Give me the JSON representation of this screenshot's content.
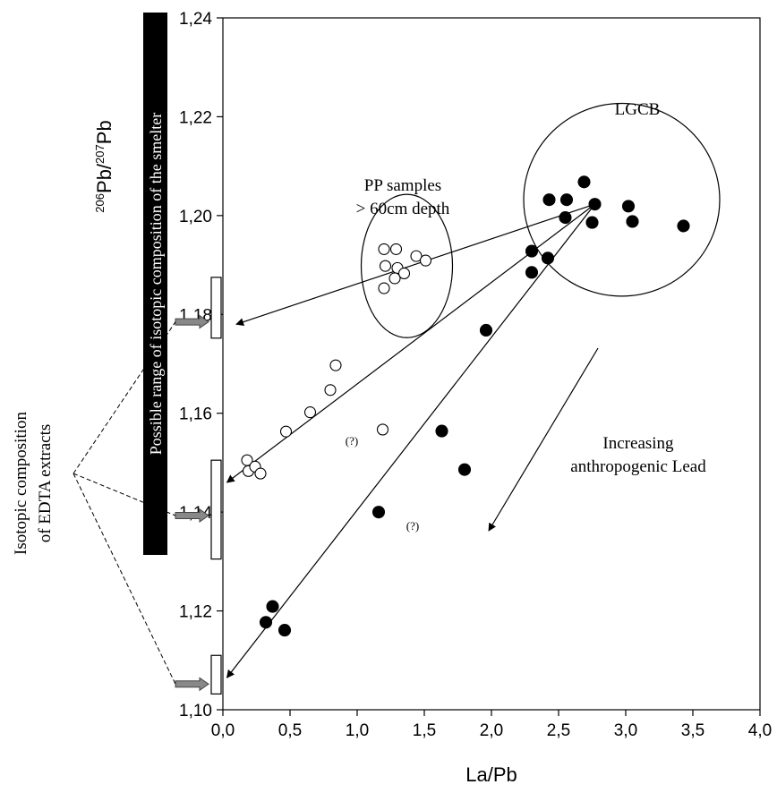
{
  "chart_data": {
    "type": "scatter",
    "xlabel": "La/Pb",
    "ylabel_parts": {
      "iso1_mass": "206",
      "iso1_el": "Pb",
      "slash": "/",
      "iso2_mass": "207",
      "iso2_el": "Pb"
    },
    "xlim": [
      0,
      4
    ],
    "ylim": [
      1.1,
      1.24
    ],
    "xticks": [
      "0,0",
      "0,5",
      "1,0",
      "1,5",
      "2,0",
      "2,5",
      "3,0",
      "3,5",
      "4,0"
    ],
    "yticks": [
      "1,10",
      "1,12",
      "1,14",
      "1,16",
      "1,18",
      "1,20",
      "1,22",
      "1,24"
    ],
    "series": [
      {
        "marker": "filled-circle",
        "points": [
          [
            2.43,
            1.2032
          ],
          [
            2.56,
            1.2032
          ],
          [
            2.69,
            1.2068
          ],
          [
            2.55,
            1.1996
          ],
          [
            2.77,
            1.2023
          ],
          [
            2.75,
            1.1986
          ],
          [
            3.02,
            1.2019
          ],
          [
            3.05,
            1.1988
          ],
          [
            3.43,
            1.1979
          ],
          [
            2.3,
            1.1928
          ],
          [
            2.3,
            1.1885
          ],
          [
            2.42,
            1.1914
          ],
          [
            1.96,
            1.1768
          ],
          [
            1.63,
            1.1564
          ],
          [
            1.8,
            1.1486
          ],
          [
            1.16,
            1.14
          ],
          [
            0.37,
            1.1209
          ],
          [
            0.32,
            1.1177
          ],
          [
            0.46,
            1.1161
          ]
        ]
      },
      {
        "marker": "open-circle",
        "points": [
          [
            1.2,
            1.1932
          ],
          [
            1.29,
            1.1932
          ],
          [
            1.21,
            1.1898
          ],
          [
            1.3,
            1.1894
          ],
          [
            1.35,
            1.1883
          ],
          [
            1.44,
            1.1918
          ],
          [
            1.51,
            1.1909
          ],
          [
            1.28,
            1.1873
          ],
          [
            1.2,
            1.1853
          ],
          [
            0.84,
            1.1697
          ],
          [
            0.8,
            1.1647
          ],
          [
            0.65,
            1.1602
          ],
          [
            0.47,
            1.1563
          ],
          [
            1.19,
            1.1567
          ],
          [
            0.18,
            1.1505
          ],
          [
            0.19,
            1.1483
          ],
          [
            0.24,
            1.1492
          ],
          [
            0.28,
            1.1478
          ]
        ]
      }
    ],
    "annotations": {
      "lgcb": "LGCB",
      "pp_line1": "PP samples",
      "pp_line2": "> 60cm depth",
      "trend_line1": "Increasing",
      "trend_line2": "anthropogenic Lead",
      "q1": "(?)",
      "q2": "(?)",
      "smelter_range": "Possible range of isotopic composition of the smelter",
      "edta_line1": "Isotopic composition",
      "edta_line2": "of EDTA extracts"
    },
    "mixing_lines": [
      {
        "from": [
          2.77,
          1.2023
        ],
        "to": [
          0.1,
          1.178
        ]
      },
      {
        "from": [
          2.77,
          1.2023
        ],
        "to": [
          0.03,
          1.146
        ]
      },
      {
        "from": [
          2.77,
          1.2023
        ],
        "to": [
          0.03,
          1.1065
        ]
      }
    ],
    "ellipses": [
      {
        "name": "lgcb",
        "center": [
          2.97,
          1.2032
        ],
        "rx": 0.73,
        "ry": 0.0195
      },
      {
        "name": "pp",
        "center": [
          1.37,
          1.1898
        ],
        "rx": 0.34,
        "ry": 0.0145
      }
    ],
    "range_boxes": [
      {
        "y": [
          1.1752,
          1.1875
        ]
      },
      {
        "y": [
          1.1305,
          1.1505
        ]
      },
      {
        "y": [
          1.1032,
          1.111
        ]
      }
    ],
    "edta_arrows_y": [
      1.1785,
      1.1393,
      1.1052
    ]
  }
}
